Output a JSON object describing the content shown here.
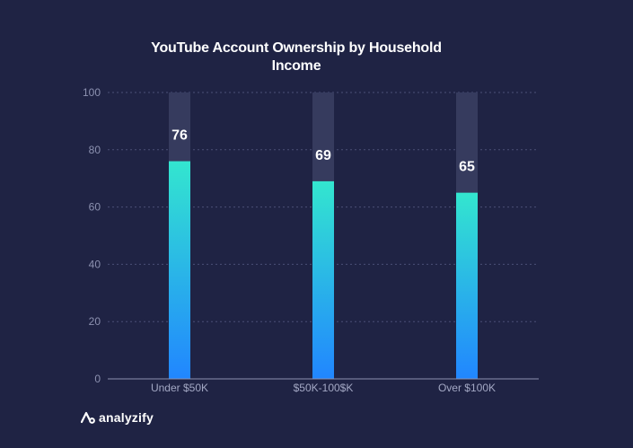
{
  "chart_data": {
    "type": "bar",
    "title": "YouTube Account Ownership by Household Income",
    "categories": [
      "Under $50K",
      "$50K-100$K",
      "Over $100K"
    ],
    "values": [
      76,
      69,
      65
    ],
    "ylim": [
      0,
      100
    ],
    "yticks": [
      0,
      20,
      40,
      60,
      80,
      100
    ],
    "xlabel": "",
    "ylabel": "",
    "grid": true,
    "colors": {
      "background": "#1f2344",
      "bar_track": "#363b5e",
      "bar_gradient_top": "#33e6cf",
      "bar_gradient_bottom": "#2186ff",
      "grid": "#4b5077"
    }
  },
  "brand": {
    "name": "analyzify",
    "icon": "analyzify-logo-icon"
  }
}
